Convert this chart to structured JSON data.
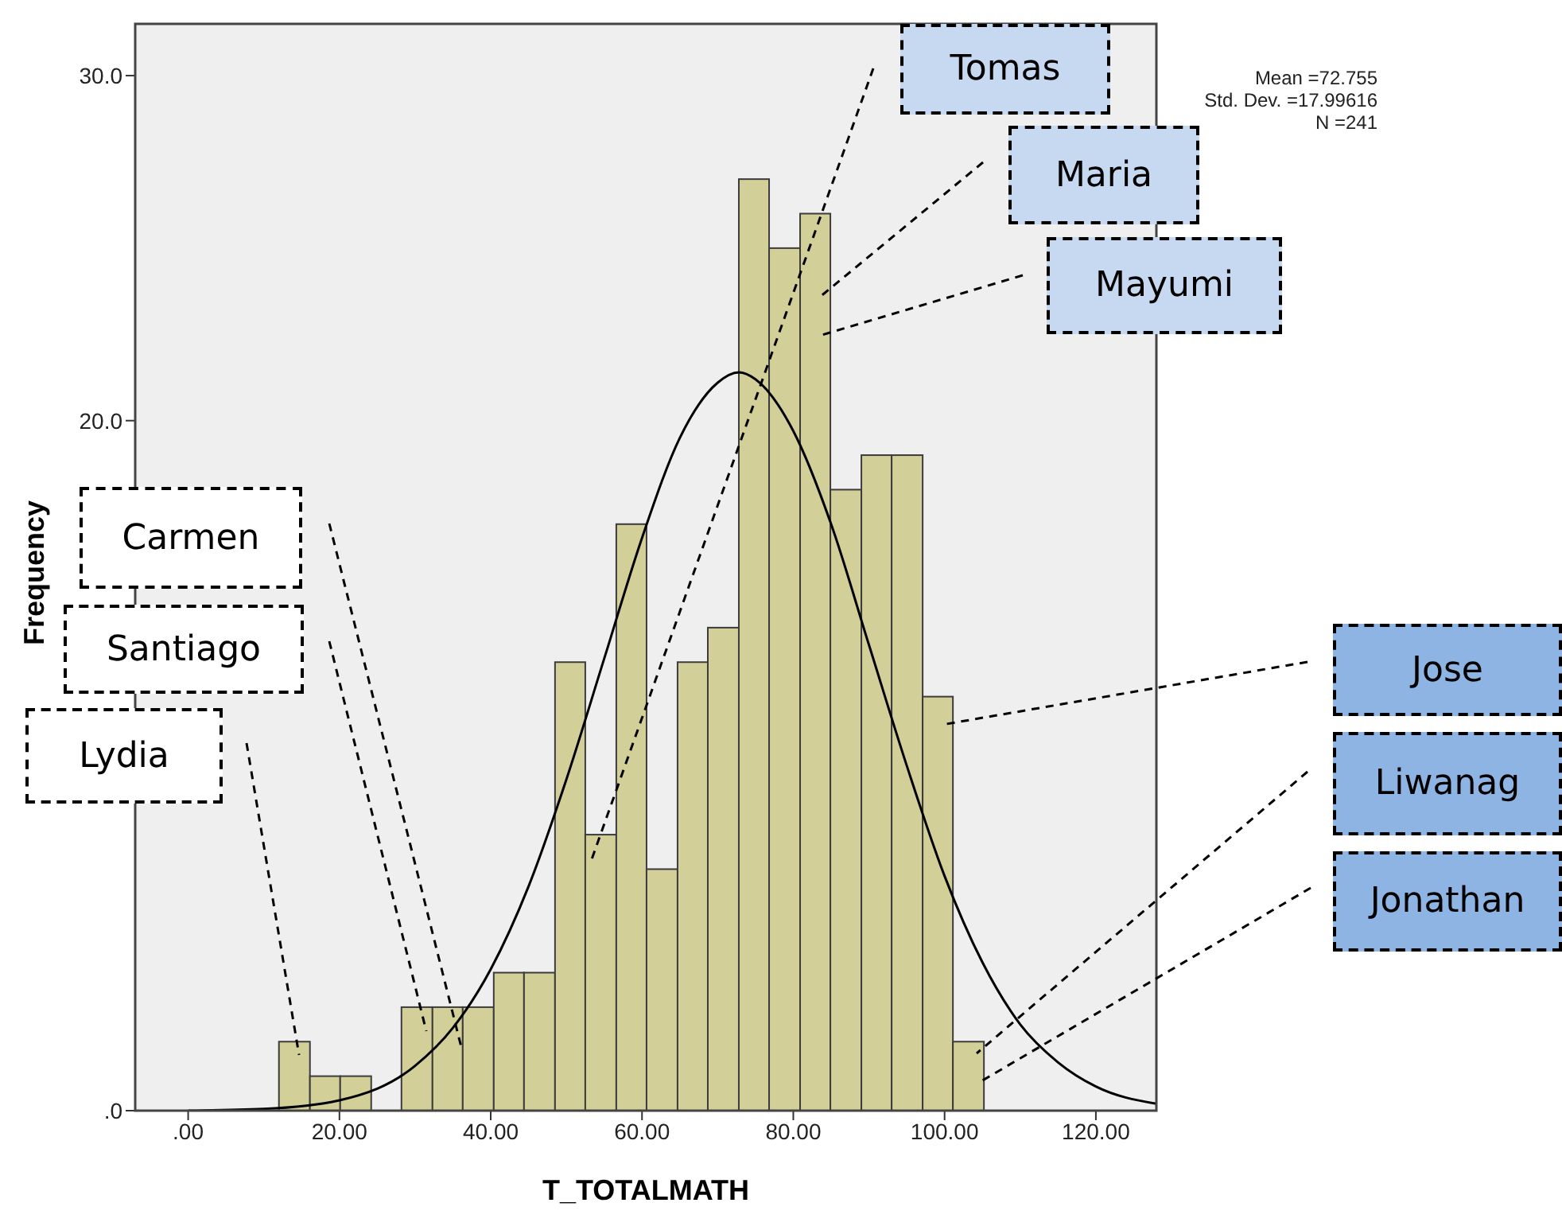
{
  "chart_data": {
    "type": "histogram",
    "xlabel": "T_TOTALMATH",
    "ylabel": "Frequency",
    "color": "#d3cf98",
    "bins": [
      12.0,
      16.1,
      20.1,
      24.2,
      28.2,
      32.3,
      36.3,
      40.4,
      44.4,
      48.5,
      52.5,
      56.6,
      60.6,
      64.7,
      68.7,
      72.8,
      76.8,
      80.9,
      84.9,
      89.0,
      93.0,
      97.1,
      101.1,
      105.2
    ],
    "values": [
      2,
      1,
      1,
      0,
      3,
      3,
      3,
      4,
      4,
      13,
      8,
      17,
      7,
      13,
      14,
      27,
      25,
      26,
      18,
      19,
      19,
      12,
      2
    ],
    "series": [
      {
        "type": "line",
        "color": "#000000",
        "x": [
          0,
          10,
          20,
          30,
          35,
          40,
          45,
          50,
          55,
          60,
          65,
          70,
          72.8,
          75,
          80,
          85,
          90,
          95,
          100,
          105,
          110,
          115,
          120,
          128
        ],
        "values": [
          0.0,
          0.05,
          0.3,
          1.3,
          2.4,
          4.1,
          6.5,
          9.6,
          13.1,
          16.6,
          19.5,
          21.1,
          21.4,
          21.2,
          19.7,
          17.0,
          13.5,
          10.0,
          6.8,
          4.3,
          2.5,
          1.4,
          0.7,
          0.2
        ]
      }
    ],
    "xlim": [
      -7,
      128
    ],
    "xticks": [
      {
        "value": 0,
        "label": ".00"
      },
      {
        "value": 20,
        "label": "20.00"
      },
      {
        "value": 40,
        "label": "40.00"
      },
      {
        "value": 60,
        "label": "60.00"
      },
      {
        "value": 80,
        "label": "80.00"
      },
      {
        "value": 100,
        "label": "100.00"
      },
      {
        "value": 120,
        "label": "120.00"
      }
    ],
    "ylim": [
      0,
      31.5
    ],
    "yticks": [
      {
        "value": 0,
        "label": ".0"
      },
      {
        "value": 20,
        "label": "20.0"
      },
      {
        "value": 30,
        "label": "30.0"
      }
    ],
    "annotations": [
      "Tomas",
      "Maria",
      "Mayumi",
      "Carmen",
      "Santiago",
      "Lydia",
      "Jose",
      "Liwanag",
      "Jonathan",
      "Mean =72.755",
      "Std. Dev. =17.99616",
      "N =241"
    ]
  }
}
